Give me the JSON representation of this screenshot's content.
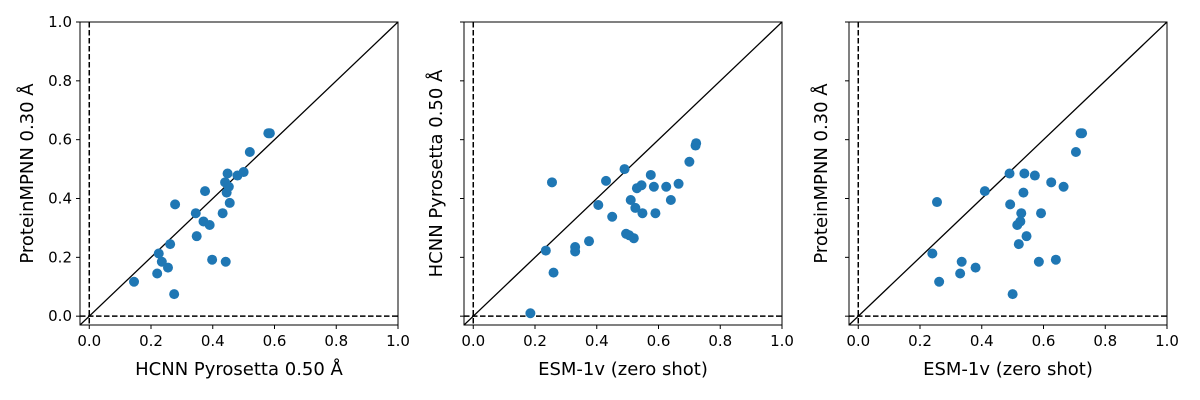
{
  "chart_data": [
    {
      "type": "scatter",
      "xlabel": "HCNN Pyrosetta 0.50 Å",
      "ylabel": "ProteinMPNN 0.30 Å",
      "xlim": [
        -0.03,
        1.0
      ],
      "ylim": [
        -0.03,
        1.0
      ],
      "xticks": [
        "0.0",
        "0.2",
        "0.4",
        "0.6",
        "0.8",
        "1.0"
      ],
      "yticks": [
        "0.0",
        "0.2",
        "0.4",
        "0.6",
        "0.8",
        "1.0"
      ],
      "show_ytick_labels": true,
      "diagonal": true,
      "zero_lines": true,
      "points": [
        [
          0.145,
          0.117
        ],
        [
          0.22,
          0.145
        ],
        [
          0.225,
          0.213
        ],
        [
          0.235,
          0.185
        ],
        [
          0.255,
          0.165
        ],
        [
          0.262,
          0.245
        ],
        [
          0.275,
          0.075
        ],
        [
          0.278,
          0.38
        ],
        [
          0.345,
          0.35
        ],
        [
          0.348,
          0.272
        ],
        [
          0.37,
          0.322
        ],
        [
          0.375,
          0.425
        ],
        [
          0.39,
          0.31
        ],
        [
          0.398,
          0.192
        ],
        [
          0.432,
          0.35
        ],
        [
          0.44,
          0.455
        ],
        [
          0.442,
          0.185
        ],
        [
          0.445,
          0.42
        ],
        [
          0.448,
          0.485
        ],
        [
          0.452,
          0.44
        ],
        [
          0.455,
          0.385
        ],
        [
          0.48,
          0.478
        ],
        [
          0.5,
          0.49
        ],
        [
          0.52,
          0.558
        ],
        [
          0.58,
          0.622
        ],
        [
          0.585,
          0.622
        ]
      ]
    },
    {
      "type": "scatter",
      "xlabel": "ESM-1v (zero shot)",
      "ylabel": "HCNN Pyrosetta 0.50 Å",
      "xlim": [
        -0.03,
        1.0
      ],
      "ylim": [
        -0.03,
        1.0
      ],
      "xticks": [
        "0.0",
        "0.2",
        "0.4",
        "0.6",
        "0.8",
        "1.0"
      ],
      "yticks": [
        "0.0",
        "0.2",
        "0.4",
        "0.6",
        "0.8",
        "1.0"
      ],
      "show_ytick_labels": false,
      "diagonal": true,
      "zero_lines": true,
      "points": [
        [
          0.185,
          0.01
        ],
        [
          0.235,
          0.223
        ],
        [
          0.255,
          0.455
        ],
        [
          0.26,
          0.148
        ],
        [
          0.33,
          0.22
        ],
        [
          0.33,
          0.235
        ],
        [
          0.375,
          0.255
        ],
        [
          0.405,
          0.378
        ],
        [
          0.43,
          0.46
        ],
        [
          0.45,
          0.338
        ],
        [
          0.49,
          0.5
        ],
        [
          0.495,
          0.28
        ],
        [
          0.505,
          0.275
        ],
        [
          0.51,
          0.395
        ],
        [
          0.52,
          0.265
        ],
        [
          0.525,
          0.368
        ],
        [
          0.53,
          0.435
        ],
        [
          0.545,
          0.445
        ],
        [
          0.548,
          0.35
        ],
        [
          0.575,
          0.48
        ],
        [
          0.585,
          0.44
        ],
        [
          0.59,
          0.35
        ],
        [
          0.625,
          0.44
        ],
        [
          0.64,
          0.395
        ],
        [
          0.665,
          0.45
        ],
        [
          0.7,
          0.525
        ],
        [
          0.72,
          0.58
        ],
        [
          0.722,
          0.588
        ]
      ]
    },
    {
      "type": "scatter",
      "xlabel": "ESM-1v (zero shot)",
      "ylabel": "ProteinMPNN 0.30 Å",
      "xlim": [
        -0.03,
        1.0
      ],
      "ylim": [
        -0.03,
        1.0
      ],
      "xticks": [
        "0.0",
        "0.2",
        "0.4",
        "0.6",
        "0.8",
        "1.0"
      ],
      "yticks": [
        "0.0",
        "0.2",
        "0.4",
        "0.6",
        "0.8",
        "1.0"
      ],
      "show_ytick_labels": false,
      "diagonal": true,
      "zero_lines": true,
      "points": [
        [
          0.24,
          0.213
        ],
        [
          0.255,
          0.388
        ],
        [
          0.262,
          0.117
        ],
        [
          0.33,
          0.145
        ],
        [
          0.335,
          0.185
        ],
        [
          0.38,
          0.165
        ],
        [
          0.41,
          0.425
        ],
        [
          0.49,
          0.485
        ],
        [
          0.492,
          0.38
        ],
        [
          0.5,
          0.075
        ],
        [
          0.515,
          0.31
        ],
        [
          0.52,
          0.245
        ],
        [
          0.525,
          0.322
        ],
        [
          0.528,
          0.35
        ],
        [
          0.535,
          0.42
        ],
        [
          0.538,
          0.485
        ],
        [
          0.545,
          0.272
        ],
        [
          0.572,
          0.478
        ],
        [
          0.585,
          0.185
        ],
        [
          0.592,
          0.35
        ],
        [
          0.625,
          0.455
        ],
        [
          0.64,
          0.192
        ],
        [
          0.665,
          0.44
        ],
        [
          0.705,
          0.558
        ],
        [
          0.72,
          0.622
        ],
        [
          0.725,
          0.622
        ]
      ]
    }
  ]
}
